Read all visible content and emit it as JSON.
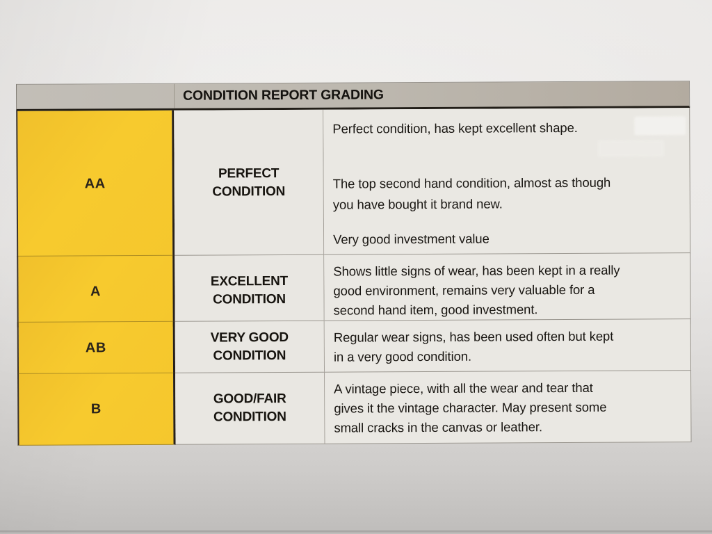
{
  "table": {
    "title": "CONDITION REPORT GRADING",
    "rows": [
      {
        "grade": "AA",
        "label_lines": [
          "PERFECT",
          "CONDITION"
        ],
        "paragraphs": [
          [
            "Perfect condition, has kept excellent shape."
          ],
          [
            "The top second hand condition, almost as though",
            "you have bought it brand new."
          ],
          [
            "Very good investment value"
          ]
        ]
      },
      {
        "grade": "A",
        "label_lines": [
          "EXCELLENT",
          "CONDITION"
        ],
        "paragraphs": [
          [
            "Shows little signs of wear, has been kept in a really",
            "good environment, remains very valuable for a",
            "second hand item, good investment."
          ]
        ]
      },
      {
        "grade": "AB",
        "label_lines": [
          "VERY GOOD",
          "CONDITION"
        ],
        "paragraphs": [
          [
            "Regular wear signs, has been used often but kept",
            "in a very good condition."
          ]
        ]
      },
      {
        "grade": "B",
        "label_lines": [
          "GOOD/FAIR",
          "CONDITION"
        ],
        "paragraphs": [
          [
            "A vintage piece, with all the wear and tear that",
            "gives it the vintage character. May present some",
            "small cracks in the canvas or leather."
          ]
        ]
      }
    ]
  },
  "colors": {
    "grade_yellow": "#f6c82d",
    "header_gray": "#bcb7ae",
    "cell_gray": "#eae8e3",
    "border_dark": "#27211a",
    "line_gray": "#9a968f",
    "paper": "#e8e6e4",
    "text": "#1c1915"
  }
}
